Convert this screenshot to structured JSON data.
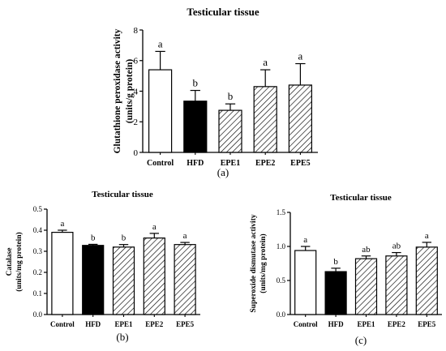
{
  "hatch_color": "#000000",
  "chart_data": [
    {
      "type": "bar",
      "title": "Testicular tissue",
      "ylabel_lines": [
        "Glutathione peroxidase activity",
        "(units/g protein)"
      ],
      "categories": [
        "Control",
        "HFD",
        "EPE1",
        "EPE2",
        "EPE5"
      ],
      "values": [
        5.4,
        3.35,
        2.75,
        4.3,
        4.4
      ],
      "errors": [
        1.2,
        0.7,
        0.42,
        1.1,
        1.4
      ],
      "letters": [
        "a",
        "b",
        "b",
        "a",
        "a"
      ],
      "fills": [
        "white",
        "black",
        "hatch",
        "hatch",
        "hatch"
      ],
      "ylim": [
        0,
        8
      ],
      "yticks": [
        "0",
        "2",
        "4",
        "6",
        "8"
      ],
      "panel_label": "(a)"
    },
    {
      "type": "bar",
      "title": "Testicular tissue",
      "ylabel_lines": [
        "Catalase",
        "(units/mg protein)"
      ],
      "categories": [
        "Control",
        "HFD",
        "EPE1",
        "EPE2",
        "EPE5"
      ],
      "values": [
        0.39,
        0.328,
        0.32,
        0.363,
        0.332
      ],
      "errors": [
        0.01,
        0.005,
        0.012,
        0.022,
        0.01
      ],
      "letters": [
        "a",
        "b",
        "b",
        "a",
        "a"
      ],
      "fills": [
        "white",
        "black",
        "hatch",
        "hatch",
        "hatch"
      ],
      "ylim": [
        0,
        0.5
      ],
      "yticks": [
        "0.0",
        "0.1",
        "0.2",
        "0.3",
        "0.4",
        "0.5"
      ],
      "panel_label": "(b)"
    },
    {
      "type": "bar",
      "title": "Testicular tissue",
      "ylabel_lines": [
        "Superoxide dismutase activity",
        "(units/mg protein)"
      ],
      "categories": [
        "Control",
        "HFD",
        "EPE1",
        "EPE2",
        "EPE5"
      ],
      "values": [
        0.94,
        0.63,
        0.82,
        0.86,
        0.99
      ],
      "errors": [
        0.06,
        0.05,
        0.04,
        0.05,
        0.07
      ],
      "letters": [
        "a",
        "b",
        "ab",
        "ab",
        "a"
      ],
      "fills": [
        "white",
        "black",
        "hatch",
        "hatch",
        "hatch"
      ],
      "ylim": [
        0,
        1.5
      ],
      "yticks": [
        "0.0",
        "0.5",
        "1.0",
        "1.5"
      ],
      "panel_label": "(c)"
    }
  ]
}
